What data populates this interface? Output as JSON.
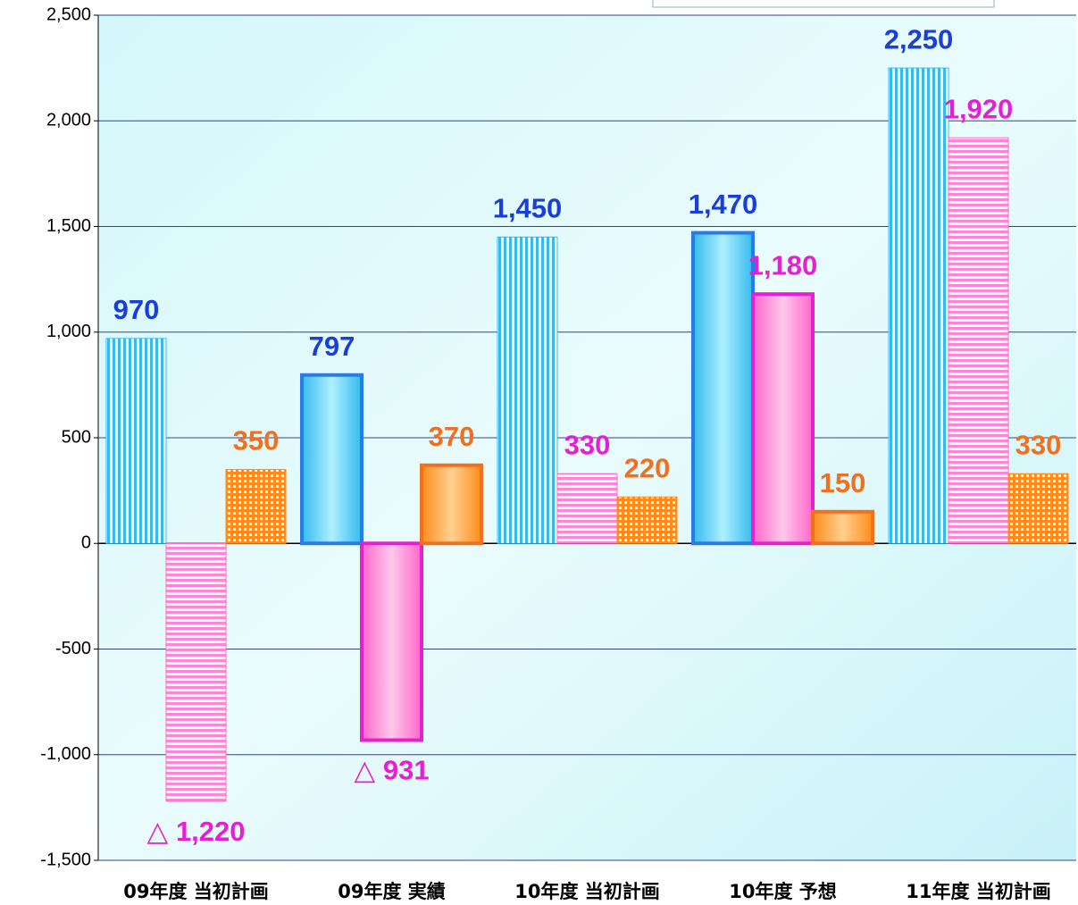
{
  "chart_data": {
    "type": "bar",
    "categories": [
      "09年度 当初計画",
      "09年度 実績",
      "10年度 当初計画",
      "10年度 予想",
      "11年度 当初計画"
    ],
    "hatched": [
      true,
      false,
      true,
      false,
      true
    ],
    "series": [
      {
        "color": "#33bbee",
        "label_color": "#1a3fd8",
        "pattern": "vertical",
        "values": [
          970,
          797,
          1450,
          1470,
          2250
        ],
        "value_labels": [
          "970",
          "797",
          "1,450",
          "1,470",
          "2,250"
        ]
      },
      {
        "color": "#ff66cc",
        "label_color": "#e620d2",
        "pattern": "horizontal",
        "values": [
          -1220,
          -931,
          330,
          1180,
          1920
        ],
        "value_labels": [
          "△ 1,220",
          "△ 931",
          "330",
          "1,180",
          "1,920"
        ]
      },
      {
        "color": "#ff8c1a",
        "label_color": "#f07020",
        "pattern": "grid",
        "values": [
          350,
          370,
          220,
          150,
          330
        ],
        "value_labels": [
          "350",
          "370",
          "220",
          "150",
          "330"
        ]
      }
    ],
    "ylim": [
      -1500,
      2500
    ],
    "yticks": [
      {
        "value": -1500,
        "label": "-1,500"
      },
      {
        "value": -1000,
        "label": "-1,000"
      },
      -500,
      0,
      500,
      {
        "value": 1000,
        "label": "1,000"
      },
      {
        "value": 1500,
        "label": "1,500"
      },
      {
        "value": 2000,
        "label": "2,000"
      },
      {
        "value": 2500,
        "label": "2,500"
      }
    ],
    "negative_tick_color": "#ff0000",
    "grid": true
  }
}
